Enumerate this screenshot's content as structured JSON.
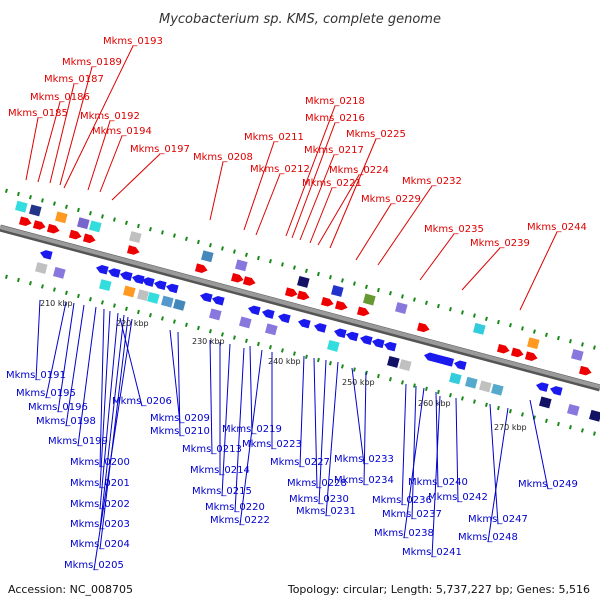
{
  "title": "Mycobacterium sp. KMS, complete genome",
  "footer": {
    "accession": "Accession: NC_008705",
    "summary": "Topology: circular; Length: 5,737,227 bp; Genes: 5,516"
  },
  "colors": {
    "background": "#ffffff",
    "backbone": "#8a8a8a",
    "forward_label": "#dd0000",
    "reverse_label": "#0000cc",
    "forward_gene": "#ee0000",
    "reverse_gene": "#1a1aee",
    "tick": "#1a8a1a"
  },
  "ticks": [
    "210 kbp",
    "220 kbp",
    "230 kbp",
    "240 kbp",
    "250 kbp",
    "260 kbp",
    "270 kbp"
  ],
  "forward_labels": [
    "Mkms_0185",
    "Mkms_0186",
    "Mkms_0187",
    "Mkms_0189",
    "Mkms_0193",
    "Mkms_0192",
    "Mkms_0194",
    "Mkms_0197",
    "Mkms_0208",
    "Mkms_0211",
    "Mkms_0212",
    "Mkms_0218",
    "Mkms_0216",
    "Mkms_0217",
    "Mkms_0221",
    "Mkms_0224",
    "Mkms_0225",
    "Mkms_0229",
    "Mkms_0232",
    "Mkms_0235",
    "Mkms_0239",
    "Mkms_0244"
  ],
  "reverse_labels": [
    "Mkms_0191",
    "Mkms_0195",
    "Mkms_0196",
    "Mkms_0198",
    "Mkms_0199",
    "Mkms_0200",
    "Mkms_0201",
    "Mkms_0202",
    "Mkms_0203",
    "Mkms_0204",
    "Mkms_0205",
    "Mkms_0206",
    "Mkms_0209",
    "Mkms_0210",
    "Mkms_0213",
    "Mkms_0214",
    "Mkms_0215",
    "Mkms_0219",
    "Mkms_0220",
    "Mkms_0222",
    "Mkms_0223",
    "Mkms_0227",
    "Mkms_0228",
    "Mkms_0230",
    "Mkms_0231",
    "Mkms_0233",
    "Mkms_0234",
    "Mkms_0236",
    "Mkms_0237",
    "Mkms_0238",
    "Mkms_0240",
    "Mkms_0241",
    "Mkms_0242",
    "Mkms_0247",
    "Mkms_0248",
    "Mkms_0249"
  ]
}
